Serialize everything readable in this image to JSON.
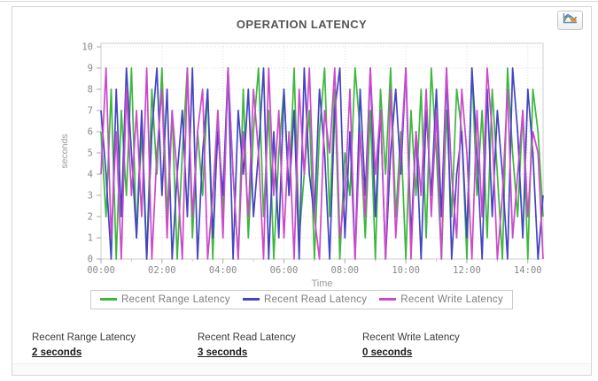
{
  "header": {
    "title": "OPERATION LATENCY",
    "chart_type_button": "line-chart"
  },
  "chart_data": {
    "type": "line",
    "title": "OPERATION LATENCY",
    "xlabel": "Time",
    "ylabel": "seconds",
    "ylim": [
      0,
      10
    ],
    "y_ticks": [
      0,
      1,
      2,
      3,
      4,
      5,
      6,
      7,
      8,
      9,
      10
    ],
    "x_tick_labels": [
      "00:00",
      "02:00",
      "04:00",
      "06:00",
      "08:00",
      "10:00",
      "12:00",
      "14:00"
    ],
    "x_tick_minutes": [
      0,
      120,
      240,
      360,
      480,
      600,
      720,
      840
    ],
    "x_start_minutes": 0,
    "x_end_minutes": 870,
    "x_step_minutes": 10,
    "grid": true,
    "legend_position": "bottom",
    "series": [
      {
        "name": "Recent Range Latency",
        "color": "#3cb83c",
        "values": [
          6,
          2,
          8,
          0,
          7,
          3,
          9,
          1,
          6,
          0,
          8,
          4,
          9,
          2,
          7,
          0,
          5,
          9,
          1,
          6,
          3,
          8,
          0,
          7,
          2,
          9,
          4,
          0,
          8,
          1,
          6,
          9,
          2,
          7,
          0,
          5,
          8,
          3,
          9,
          1,
          4,
          7,
          0,
          6,
          9,
          2,
          8,
          0,
          5,
          3,
          9,
          6,
          1,
          7,
          0,
          8,
          4,
          9,
          2,
          6,
          0,
          7,
          3,
          8,
          1,
          9,
          5,
          0,
          7,
          2,
          8,
          6,
          0,
          9,
          3,
          7,
          1,
          8,
          4,
          0,
          9,
          5,
          2,
          7,
          0,
          8,
          6,
          2
        ]
      },
      {
        "name": "Recent Read Latency",
        "color": "#4444c4",
        "values": [
          7,
          4,
          0,
          8,
          2,
          9,
          5,
          1,
          7,
          0,
          6,
          9,
          3,
          8,
          0,
          4,
          7,
          2,
          9,
          0,
          5,
          8,
          1,
          6,
          3,
          9,
          0,
          7,
          4,
          8,
          2,
          5,
          9,
          0,
          6,
          1,
          8,
          3,
          7,
          0,
          9,
          4,
          2,
          8,
          5,
          0,
          7,
          9,
          1,
          6,
          0,
          8,
          3,
          9,
          2,
          7,
          0,
          5,
          8,
          4,
          9,
          1,
          6,
          0,
          7,
          3,
          8,
          2,
          9,
          0,
          4,
          6,
          1,
          9,
          5,
          0,
          8,
          2,
          7,
          4,
          0,
          9,
          6,
          1,
          8,
          5,
          0,
          3
        ]
      },
      {
        "name": "Recent Write Latency",
        "color": "#cc49cc",
        "values": [
          4,
          9,
          1,
          6,
          0,
          8,
          3,
          7,
          2,
          9,
          0,
          5,
          8,
          1,
          7,
          4,
          0,
          9,
          2,
          6,
          8,
          0,
          3,
          7,
          1,
          9,
          4,
          0,
          6,
          2,
          8,
          5,
          0,
          9,
          3,
          7,
          1,
          6,
          0,
          8,
          4,
          9,
          2,
          0,
          7,
          5,
          9,
          1,
          3,
          8,
          0,
          6,
          2,
          9,
          4,
          7,
          0,
          8,
          1,
          5,
          9,
          0,
          6,
          3,
          8,
          2,
          7,
          0,
          9,
          4,
          1,
          8,
          5,
          0,
          7,
          2,
          9,
          6,
          0,
          3,
          8,
          1,
          4,
          7,
          2,
          6,
          5,
          0
        ]
      }
    ]
  },
  "legend": {
    "items": [
      {
        "label": "Recent Range Latency",
        "color": "#3cb83c"
      },
      {
        "label": "Recent Read Latency",
        "color": "#4444c4"
      },
      {
        "label": "Recent Write Latency",
        "color": "#cc49cc"
      }
    ]
  },
  "stats": [
    {
      "label": "Recent Range Latency",
      "value": "2 seconds"
    },
    {
      "label": "Recent Read Latency",
      "value": "3 seconds"
    },
    {
      "label": "Recent Write Latency",
      "value": "0 seconds"
    }
  ]
}
